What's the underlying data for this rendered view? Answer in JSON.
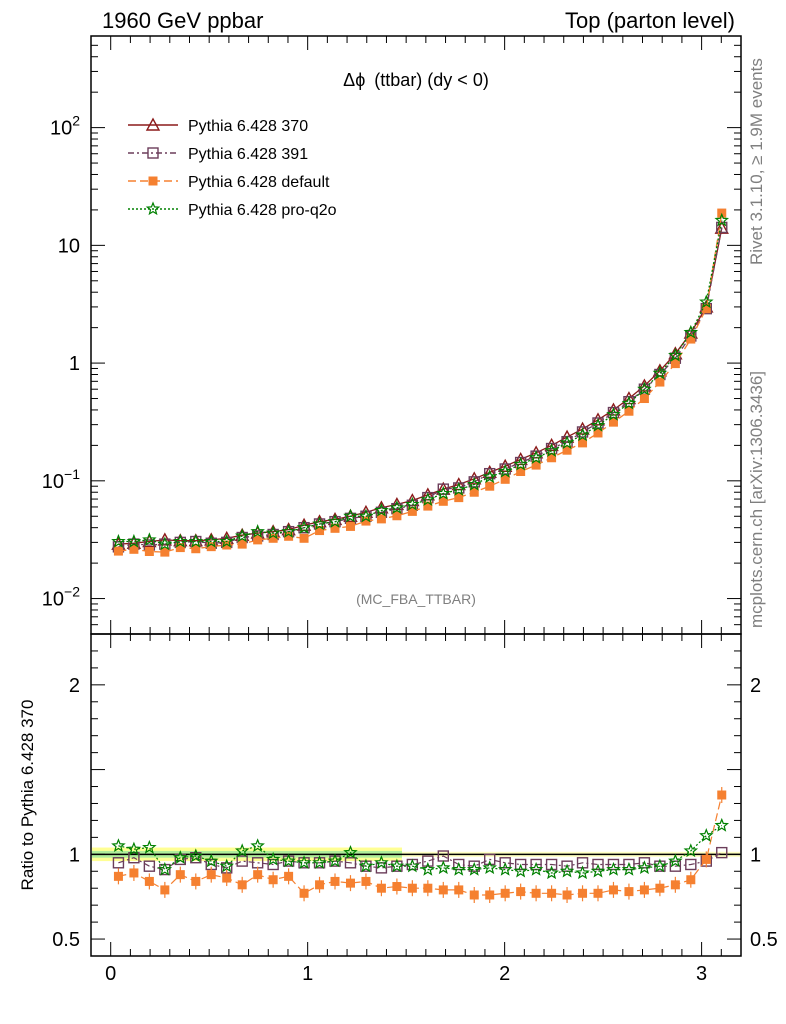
{
  "header": {
    "left": "1960 GeV ppbar",
    "right": "Top (parton level)"
  },
  "side_labels": {
    "rivet": "Rivet 3.1.10, ≥ 1.9M events",
    "mcplots": "mcplots.cern.ch [arXiv:1306.3436]"
  },
  "chart_data": [
    {
      "type": "line",
      "panel": "main",
      "title": "Δϕ (ttbar) (dy < 0)",
      "title_prefix": "Δϕ",
      "title_rest": "(ttbar) (dy < 0)",
      "watermark": "(MC_FBA_TTBAR)",
      "xlim": [
        -0.1,
        3.2
      ],
      "ylim": [
        0.005,
        600
      ],
      "yscale": "log",
      "y_ticks": [
        "10^-2",
        "10^-1",
        "1",
        "10",
        "10^2"
      ],
      "legend_position": "top-left",
      "x": [
        0.0393,
        0.1178,
        0.1963,
        0.2749,
        0.3534,
        0.432,
        0.5105,
        0.589,
        0.6676,
        0.7461,
        0.8247,
        0.9032,
        0.9817,
        1.0603,
        1.1388,
        1.2174,
        1.2959,
        1.3744,
        1.453,
        1.5315,
        1.6101,
        1.6886,
        1.7671,
        1.8457,
        1.9242,
        2.0028,
        2.0813,
        2.1598,
        2.2384,
        2.3169,
        2.3955,
        2.474,
        2.5525,
        2.6311,
        2.7096,
        2.7882,
        2.8667,
        2.9452,
        3.0238,
        3.1023
      ],
      "series": [
        {
          "name": "Pythia 6.428 370",
          "color": "#8b1a1a",
          "marker": "triangle-open",
          "values": [
            0.029,
            0.0295,
            0.0305,
            0.0315,
            0.031,
            0.031,
            0.0315,
            0.0325,
            0.0345,
            0.036,
            0.037,
            0.0385,
            0.042,
            0.045,
            0.047,
            0.05,
            0.054,
            0.059,
            0.063,
            0.068,
            0.076,
            0.085,
            0.093,
            0.104,
            0.118,
            0.133,
            0.152,
            0.173,
            0.2,
            0.235,
            0.275,
            0.33,
            0.4,
            0.5,
            0.64,
            0.86,
            1.2,
            1.8,
            3.0,
            14.0
          ]
        },
        {
          "name": "Pythia 6.428 391",
          "color": "#6b3d5a",
          "marker": "square-open",
          "values": [
            0.0275,
            0.029,
            0.0285,
            0.029,
            0.03,
            0.0305,
            0.0295,
            0.03,
            0.033,
            0.034,
            0.035,
            0.037,
            0.04,
            0.043,
            0.045,
            0.048,
            0.05,
            0.054,
            0.058,
            0.062,
            0.072,
            0.085,
            0.087,
            0.098,
            0.115,
            0.126,
            0.143,
            0.162,
            0.188,
            0.215,
            0.26,
            0.31,
            0.38,
            0.47,
            0.6,
            0.8,
            1.1,
            1.7,
            2.9,
            14.2
          ]
        },
        {
          "name": "Pythia 6.428 default",
          "color": "#f58030",
          "marker": "square-filled",
          "values": [
            0.0253,
            0.0262,
            0.0251,
            0.0248,
            0.0271,
            0.0265,
            0.0276,
            0.0285,
            0.029,
            0.0315,
            0.0325,
            0.0338,
            0.0325,
            0.0378,
            0.0395,
            0.041,
            0.0455,
            0.0475,
            0.0505,
            0.055,
            0.061,
            0.067,
            0.072,
            0.08,
            0.09,
            0.103,
            0.12,
            0.136,
            0.157,
            0.182,
            0.21,
            0.255,
            0.315,
            0.39,
            0.5,
            0.69,
            0.99,
            1.6,
            2.9,
            18.8
          ]
        },
        {
          "name": "Pythia 6.428 pro-q2o",
          "color": "#008000",
          "marker": "star",
          "values": [
            0.0305,
            0.0305,
            0.0315,
            0.029,
            0.0305,
            0.0305,
            0.0305,
            0.0305,
            0.034,
            0.037,
            0.036,
            0.037,
            0.04,
            0.043,
            0.045,
            0.05,
            0.05,
            0.056,
            0.059,
            0.063,
            0.069,
            0.078,
            0.084,
            0.093,
            0.108,
            0.12,
            0.138,
            0.157,
            0.18,
            0.21,
            0.245,
            0.295,
            0.365,
            0.455,
            0.6,
            0.82,
            1.16,
            1.82,
            3.3,
            16.3
          ]
        }
      ]
    },
    {
      "type": "line",
      "panel": "ratio",
      "ylabel": "Ratio to Pythia 6.428 370",
      "xlim": [
        -0.1,
        3.2
      ],
      "ylim": [
        0.4,
        2.3
      ],
      "y_ticks": [
        0.5,
        1,
        2
      ],
      "x_ticks": [
        0,
        1,
        2,
        3
      ],
      "band": {
        "reference": 1.0,
        "inner": [
          0.98,
          1.02
        ],
        "outer": [
          0.96,
          1.04
        ]
      },
      "x": [
        0.0393,
        0.1178,
        0.1963,
        0.2749,
        0.3534,
        0.432,
        0.5105,
        0.589,
        0.6676,
        0.7461,
        0.8247,
        0.9032,
        0.9817,
        1.0603,
        1.1388,
        1.2174,
        1.2959,
        1.3744,
        1.453,
        1.5315,
        1.6101,
        1.6886,
        1.7671,
        1.8457,
        1.9242,
        2.0028,
        2.0813,
        2.1598,
        2.2384,
        2.3169,
        2.3955,
        2.474,
        2.5525,
        2.6311,
        2.7096,
        2.7882,
        2.8667,
        2.9452,
        3.0238,
        3.1023
      ],
      "series": [
        {
          "name": "Pythia 6.428 391",
          "color": "#6b3d5a",
          "marker": "square-open",
          "values": [
            0.95,
            0.98,
            0.93,
            0.91,
            0.97,
            0.98,
            0.94,
            0.92,
            0.96,
            0.95,
            0.94,
            0.96,
            0.95,
            0.95,
            0.96,
            0.95,
            0.93,
            0.92,
            0.93,
            0.94,
            0.96,
            0.99,
            0.94,
            0.93,
            0.97,
            0.95,
            0.94,
            0.94,
            0.94,
            0.93,
            0.95,
            0.94,
            0.94,
            0.94,
            0.95,
            0.93,
            0.93,
            0.94,
            0.96,
            1.01
          ]
        },
        {
          "name": "Pythia 6.428 default",
          "color": "#f58030",
          "marker": "square-filled",
          "values": [
            0.87,
            0.89,
            0.84,
            0.79,
            0.88,
            0.84,
            0.88,
            0.86,
            0.82,
            0.88,
            0.85,
            0.87,
            0.77,
            0.82,
            0.84,
            0.83,
            0.84,
            0.8,
            0.81,
            0.8,
            0.8,
            0.79,
            0.79,
            0.76,
            0.76,
            0.77,
            0.78,
            0.77,
            0.77,
            0.76,
            0.77,
            0.77,
            0.79,
            0.78,
            0.79,
            0.8,
            0.82,
            0.85,
            0.97,
            1.35
          ]
        },
        {
          "name": "Pythia 6.428 pro-q2o",
          "color": "#008000",
          "marker": "star",
          "values": [
            1.05,
            1.03,
            1.04,
            0.91,
            0.98,
            0.99,
            0.96,
            0.93,
            1.02,
            1.05,
            0.97,
            0.96,
            0.95,
            0.95,
            0.96,
            1.01,
            0.93,
            0.95,
            0.93,
            0.93,
            0.91,
            0.92,
            0.91,
            0.91,
            0.92,
            0.91,
            0.9,
            0.91,
            0.89,
            0.9,
            0.89,
            0.9,
            0.91,
            0.91,
            0.92,
            0.93,
            0.96,
            1.02,
            1.11,
            1.17
          ]
        }
      ]
    }
  ]
}
